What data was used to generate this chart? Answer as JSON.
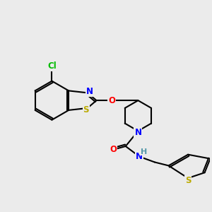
{
  "background_color": "#ebebeb",
  "bond_color": "#000000",
  "bond_width": 1.5,
  "atom_colors": {
    "Cl": "#00bb00",
    "N": "#0000ff",
    "NH": "#5599aa",
    "O": "#ff0000",
    "S": "#bbaa00"
  },
  "font_size": 8.5,
  "fig_width": 3.0,
  "fig_height": 3.0,
  "dpi": 100
}
